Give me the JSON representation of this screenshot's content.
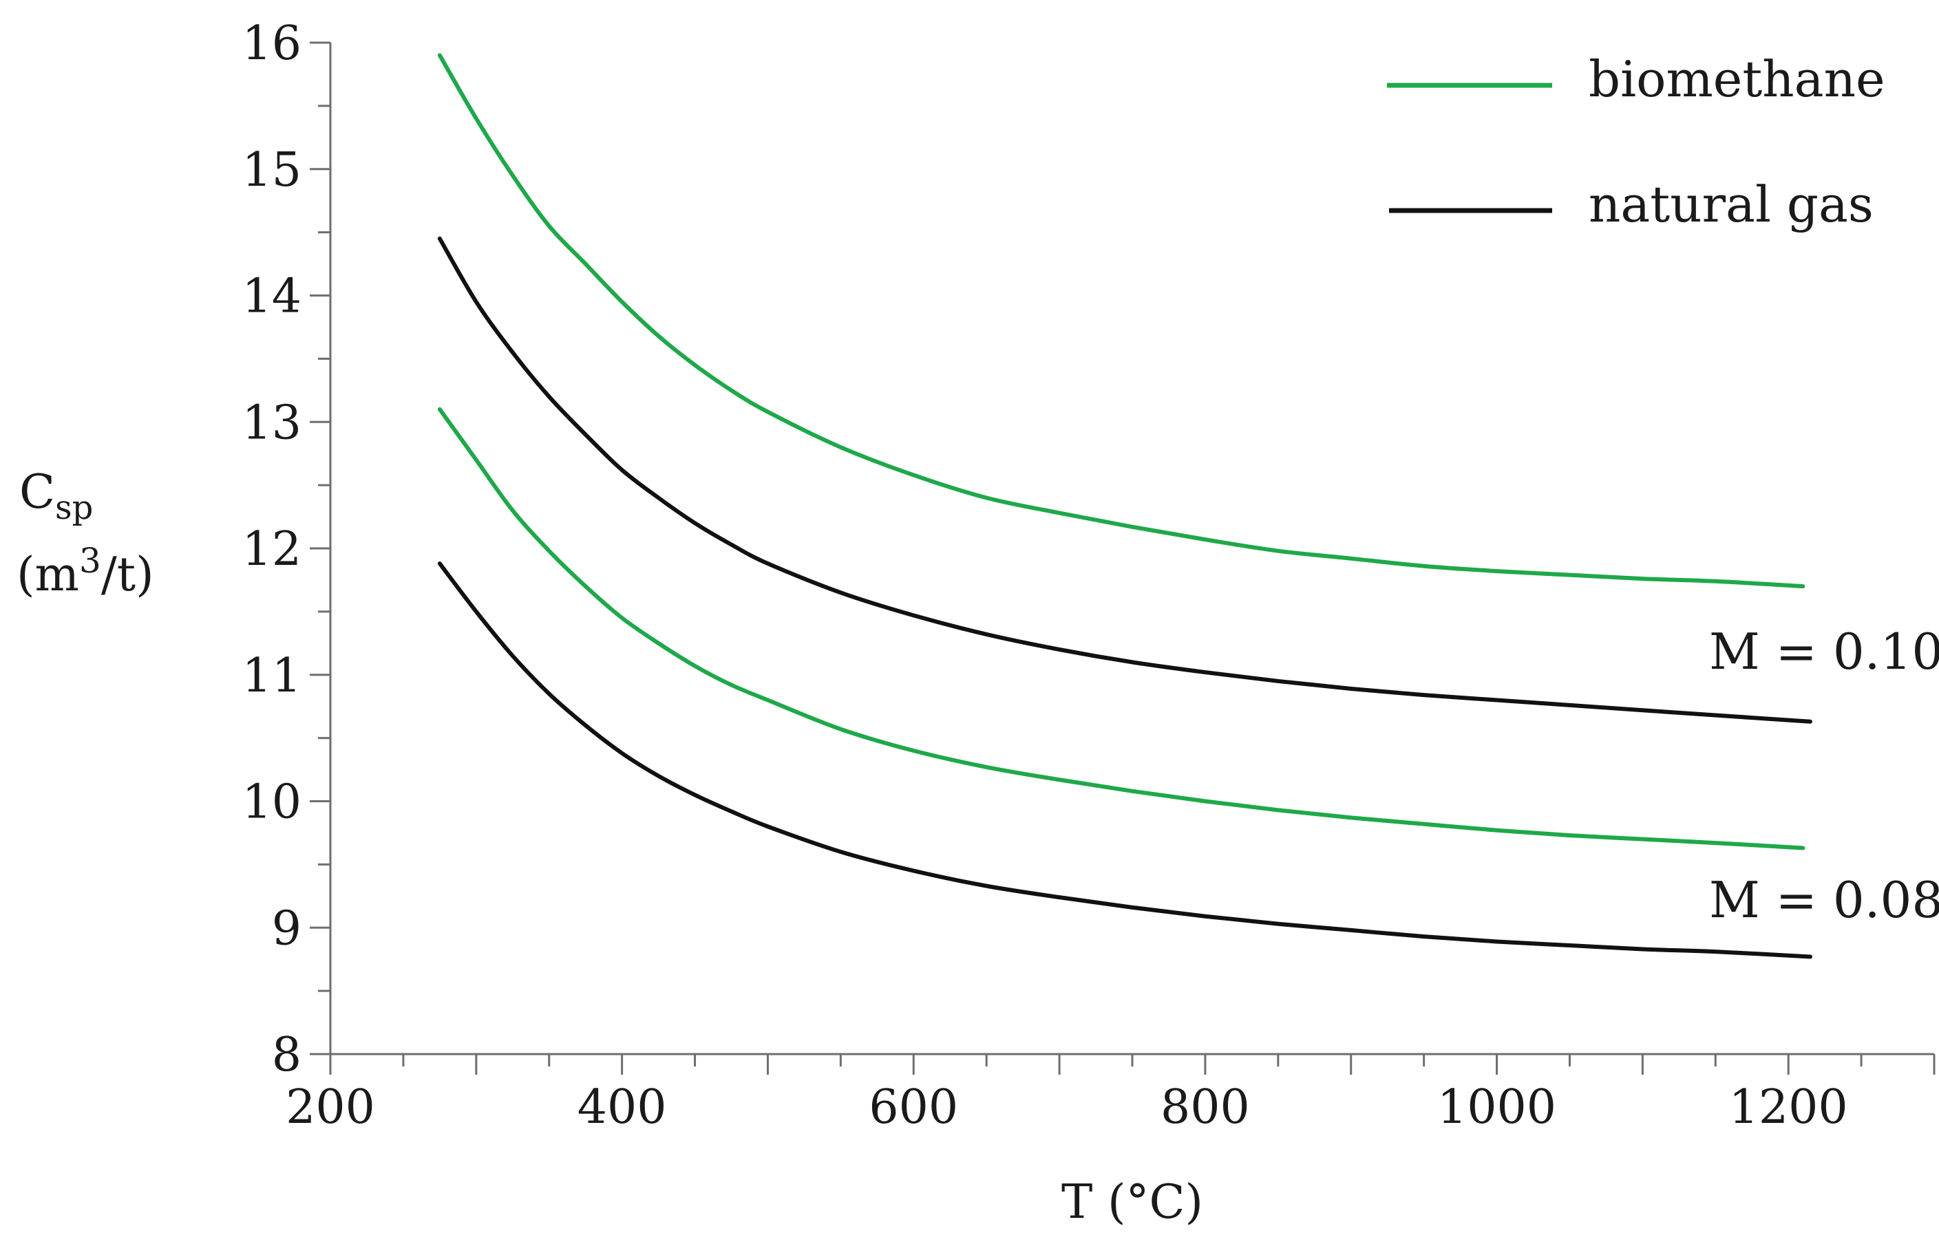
{
  "chart_data": {
    "type": "line",
    "xlabel": "T (°C)",
    "ylabel": {
      "symbol": "C",
      "subscript": "sp",
      "unit_open": "(m",
      "unit_sup": "3",
      "unit_close": "/t)"
    },
    "xlim": [
      200,
      1300
    ],
    "ylim": [
      8,
      16
    ],
    "x_ticks": [
      200,
      400,
      600,
      800,
      1000,
      1200
    ],
    "y_ticks": [
      8,
      9,
      10,
      11,
      12,
      13,
      14,
      15,
      16
    ],
    "x_minor_step": 50,
    "y_minor_step": 0.5,
    "grid": false,
    "legend_position": "top-right",
    "legend": [
      {
        "label": "biomethane",
        "color": "#1fa84a"
      },
      {
        "label": "natural gas",
        "color": "#111111"
      }
    ],
    "annotations": [
      {
        "text": "M = 0.10",
        "x": 1260,
        "y": 11.15
      },
      {
        "text": "M = 0.08",
        "x": 1260,
        "y": 9.15
      }
    ],
    "series": [
      {
        "group": "M = 0.10",
        "fuel": "biomethane",
        "color": "#1fa84a",
        "x": [
          275,
          300,
          325,
          350,
          375,
          400,
          425,
          450,
          475,
          500,
          550,
          600,
          650,
          700,
          750,
          800,
          850,
          900,
          950,
          1000,
          1050,
          1100,
          1150,
          1210
        ],
        "y": [
          15.9,
          15.4,
          14.95,
          14.55,
          14.25,
          13.95,
          13.68,
          13.45,
          13.25,
          13.08,
          12.8,
          12.58,
          12.4,
          12.28,
          12.17,
          12.07,
          11.98,
          11.92,
          11.86,
          11.82,
          11.79,
          11.76,
          11.74,
          11.7
        ]
      },
      {
        "group": "M = 0.10",
        "fuel": "natural gas",
        "color": "#111111",
        "x": [
          275,
          300,
          325,
          350,
          375,
          400,
          425,
          450,
          475,
          500,
          550,
          600,
          650,
          700,
          750,
          800,
          850,
          900,
          950,
          1000,
          1050,
          1100,
          1150,
          1215
        ],
        "y": [
          14.45,
          13.95,
          13.55,
          13.2,
          12.9,
          12.62,
          12.4,
          12.2,
          12.03,
          11.88,
          11.65,
          11.47,
          11.32,
          11.2,
          11.1,
          11.02,
          10.95,
          10.89,
          10.84,
          10.8,
          10.76,
          10.72,
          10.68,
          10.63
        ]
      },
      {
        "group": "M = 0.08",
        "fuel": "biomethane",
        "color": "#1fa84a",
        "x": [
          275,
          300,
          325,
          350,
          375,
          400,
          425,
          450,
          475,
          500,
          550,
          600,
          650,
          700,
          750,
          800,
          850,
          900,
          950,
          1000,
          1050,
          1100,
          1150,
          1210
        ],
        "y": [
          13.1,
          12.7,
          12.3,
          11.98,
          11.7,
          11.45,
          11.25,
          11.07,
          10.92,
          10.8,
          10.57,
          10.4,
          10.27,
          10.17,
          10.08,
          10.0,
          9.93,
          9.87,
          9.82,
          9.77,
          9.73,
          9.7,
          9.67,
          9.63
        ]
      },
      {
        "group": "M = 0.08",
        "fuel": "natural gas",
        "color": "#111111",
        "x": [
          275,
          300,
          325,
          350,
          375,
          400,
          425,
          450,
          475,
          500,
          550,
          600,
          650,
          700,
          750,
          800,
          850,
          900,
          950,
          1000,
          1050,
          1100,
          1150,
          1215
        ],
        "y": [
          11.88,
          11.5,
          11.15,
          10.85,
          10.6,
          10.38,
          10.2,
          10.05,
          9.92,
          9.8,
          9.6,
          9.45,
          9.33,
          9.24,
          9.16,
          9.09,
          9.03,
          8.98,
          8.93,
          8.89,
          8.86,
          8.83,
          8.81,
          8.77
        ]
      }
    ]
  }
}
